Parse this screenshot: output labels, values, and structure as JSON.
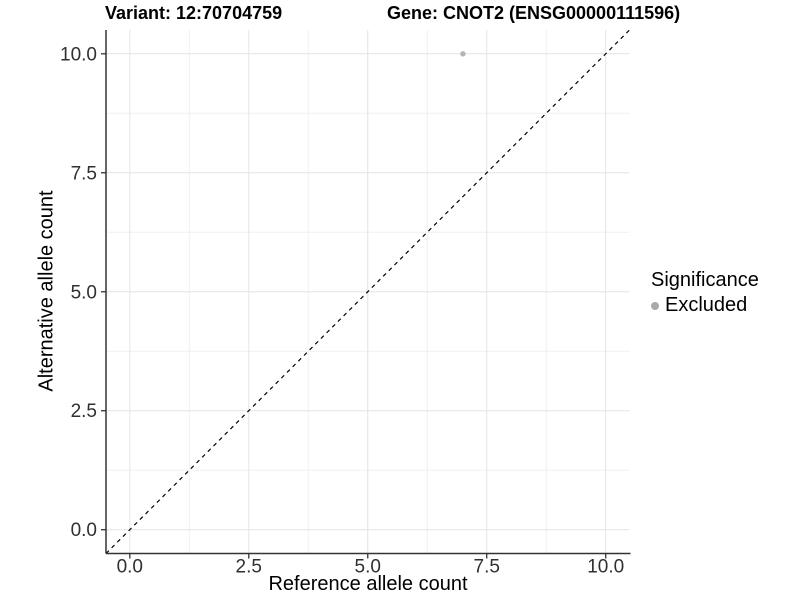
{
  "chart_data": {
    "type": "scatter",
    "title_left": "Variant: 12:70704759",
    "title_right": "Gene: CNOT2 (ENSG00000111596)",
    "xlabel": "Reference allele count",
    "ylabel": "Alternative allele count",
    "xlim": [
      -0.5,
      10.5
    ],
    "ylim": [
      -0.5,
      10.5
    ],
    "x_ticks": {
      "values": [
        0,
        2.5,
        5,
        7.5,
        10
      ],
      "labels": [
        "0.0",
        "2.5",
        "5.0",
        "7.5",
        "10.0"
      ]
    },
    "y_ticks": {
      "values": [
        0,
        2.5,
        5,
        7.5,
        10
      ],
      "labels": [
        "0.0",
        "2.5",
        "5.0",
        "7.5",
        "10.0"
      ]
    },
    "minor_ticks": [
      1.25,
      3.75,
      6.25,
      8.75
    ],
    "grid": true,
    "identity_line": {
      "style": "dashed",
      "from": [
        -0.5,
        -0.5
      ],
      "to": [
        10.5,
        10.5
      ],
      "color": "#000000"
    },
    "series": [
      {
        "name": "Excluded",
        "color": "#b5b5b5",
        "points": [
          {
            "x": 7,
            "y": 10
          }
        ]
      }
    ],
    "legend": {
      "title": "Significance",
      "position": "right",
      "entries": [
        {
          "label": "Excluded",
          "color": "#aaaaaa"
        }
      ]
    }
  },
  "colors": {
    "background": "#ffffff",
    "grid_major": "#e4e4e4",
    "grid_minor": "#f0f0f0",
    "axis_line": "#333333",
    "tick_mark": "#333333",
    "tick_label": "#303030",
    "title_text": "#000000"
  }
}
